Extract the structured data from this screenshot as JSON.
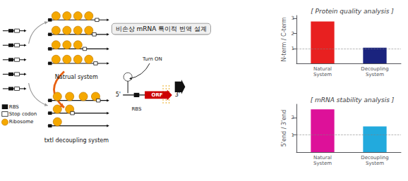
{
  "chart_data": [
    {
      "type": "bar",
      "title": "[ Protein quality analysis ]",
      "categories": [
        "Natural\nSystem",
        "Decoupling\nSystem"
      ],
      "values": [
        2.8,
        1.05
      ],
      "colors": [
        "#e82020",
        "#1a237e"
      ],
      "ylabel": "N-term / C-term",
      "ylim": [
        0,
        3.2
      ],
      "yticks": [
        1,
        2,
        3
      ],
      "hline": 1.0,
      "grid": false,
      "annotations": [
        "RBS",
        "Stop codon",
        "Ribosome",
        "Natrual system",
        "txtl decoupling system",
        "비손상 mRNA 특이적 번역 설계",
        "5'",
        "3'",
        "RBS",
        "ORF",
        "Turn ON"
      ]
    },
    {
      "type": "bar",
      "title": "[ mRNA stability analysis ]",
      "categories": [
        "Natural\nSystem",
        "Decoupling\nSystem"
      ],
      "values": [
        2.5,
        1.5
      ],
      "colors": [
        "#dd1199",
        "#22aadd"
      ],
      "ylabel": "5'end / 3'end",
      "ylim": [
        0,
        2.8
      ],
      "yticks": [
        1,
        2
      ],
      "hline": 1.0,
      "grid": false
    }
  ]
}
